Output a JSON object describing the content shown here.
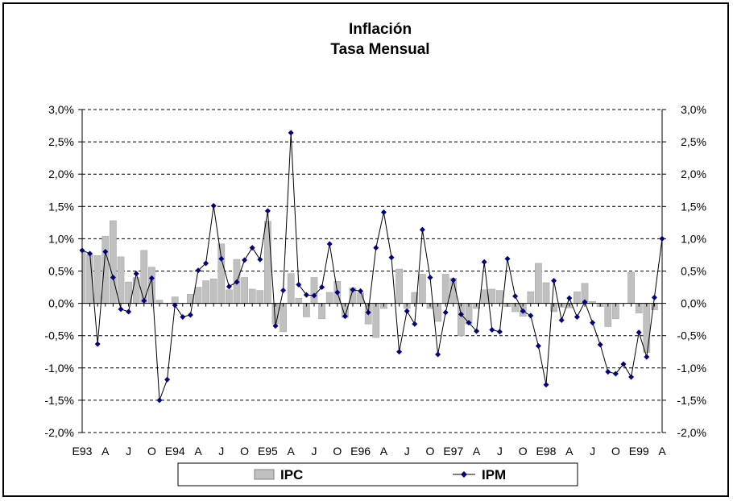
{
  "chart_data": {
    "type": "bar",
    "title": "Inflación",
    "subtitle": "Tasa Mensual",
    "ylim": [
      -2.0,
      3.0
    ],
    "y_ticks": [
      "3,0%",
      "2,5%",
      "2,0%",
      "1,5%",
      "1,0%",
      "0,5%",
      "0,0%",
      "-0,5%",
      "-1,0%",
      "-1,5%",
      "-2,0%"
    ],
    "x_tick_labels": [
      "E93",
      "A",
      "J",
      "O",
      "E94",
      "A",
      "J",
      "O",
      "E95",
      "A",
      "J",
      "O",
      "E96",
      "A",
      "J",
      "O",
      "E97",
      "A",
      "J",
      "O",
      "E98",
      "A",
      "J",
      "O",
      "E99",
      "A"
    ],
    "grid": "horizontal dashed",
    "legend_position": "bottom",
    "series": [
      {
        "name": "IPC",
        "kind": "bar",
        "color": "#c0c0c0",
        "values": [
          0.8,
          0.75,
          0.74,
          1.04,
          1.28,
          0.72,
          0.33,
          0.4,
          0.82,
          0.56,
          0.05,
          0.0,
          0.1,
          0.0,
          0.14,
          0.25,
          0.35,
          0.38,
          0.92,
          0.21,
          0.68,
          0.4,
          0.22,
          0.2,
          1.27,
          -0.32,
          -0.44,
          0.46,
          0.08,
          -0.21,
          0.4,
          -0.24,
          0.17,
          0.34,
          -0.22,
          0.24,
          0.16,
          -0.32,
          -0.53,
          -0.08,
          0.0,
          0.53,
          -0.08,
          0.17,
          0.45,
          -0.08,
          -0.28,
          0.45,
          0.39,
          -0.5,
          -0.32,
          -0.08,
          0.21,
          0.22,
          0.2,
          -0.05,
          -0.13,
          -0.2,
          0.18,
          0.62,
          0.32,
          -0.13,
          -0.06,
          -0.07,
          0.18,
          0.31,
          0.03,
          -0.05,
          -0.36,
          -0.24,
          0.0,
          0.48,
          -0.15,
          -0.76,
          -0.1
        ],
        "values_note": ""
      },
      {
        "name": "IPM",
        "kind": "line",
        "color": "#000080",
        "values": [
          0.82,
          0.77,
          -0.63,
          0.8,
          0.4,
          -0.09,
          -0.13,
          0.46,
          0.04,
          0.39,
          -1.5,
          -1.18,
          -0.03,
          -0.21,
          -0.18,
          0.51,
          0.62,
          1.51,
          0.69,
          0.26,
          0.33,
          0.67,
          0.86,
          0.68,
          1.43,
          -0.35,
          0.2,
          2.64,
          0.29,
          0.13,
          0.12,
          0.25,
          0.92,
          0.17,
          -0.2,
          0.21,
          0.19,
          -0.14,
          0.86,
          1.41,
          0.71,
          -0.75,
          -0.12,
          -0.32,
          1.14,
          0.4,
          -0.79,
          -0.14,
          0.36,
          -0.17,
          -0.3,
          -0.43,
          0.64,
          -0.41,
          -0.44,
          0.69,
          0.11,
          -0.12,
          -0.19,
          -0.66,
          -1.26,
          0.35,
          -0.26,
          0.08,
          -0.21,
          0.02,
          -0.3,
          -0.64,
          -1.06,
          -1.09,
          -0.94,
          -1.14,
          -0.45,
          -0.83,
          0.09,
          1.0
        ]
      }
    ]
  }
}
